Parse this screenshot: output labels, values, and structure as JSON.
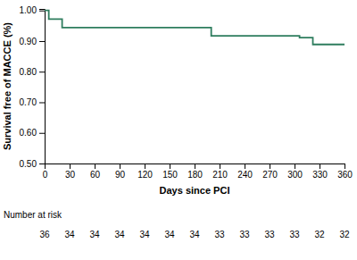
{
  "chart_data": {
    "type": "line",
    "x": [
      0,
      5,
      5,
      21,
      21,
      200,
      200,
      210,
      210,
      306,
      306,
      322,
      322,
      360
    ],
    "values": [
      1.0,
      1.0,
      0.972,
      0.972,
      0.944,
      0.944,
      0.917,
      0.917,
      0.917,
      0.917,
      0.911,
      0.911,
      0.889,
      0.889
    ],
    "color": "#2e7d5e",
    "x_label": "Days since PCI",
    "y_label": "Survival free of MACCE (%)",
    "xlim": [
      0,
      360
    ],
    "ylim": [
      0.5,
      1.005
    ],
    "xticks": [
      0,
      30,
      60,
      90,
      120,
      150,
      180,
      210,
      240,
      270,
      300,
      330,
      360
    ],
    "yticks": [
      {
        "value": 0.5,
        "label": "0.50"
      },
      {
        "value": 0.6,
        "label": "0.60"
      },
      {
        "value": 0.7,
        "label": "0.70"
      },
      {
        "value": 0.8,
        "label": "0.80"
      },
      {
        "value": 0.9,
        "label": "0.90"
      },
      {
        "value": 1.0,
        "label": "1.00"
      }
    ],
    "grid": false,
    "risk_label": "Number at risk",
    "risk_x": [
      0,
      30,
      60,
      90,
      120,
      150,
      180,
      210,
      240,
      270,
      300,
      330,
      360
    ],
    "risk_numbers": [
      36,
      34,
      34,
      34,
      34,
      34,
      34,
      33,
      33,
      33,
      33,
      32,
      32
    ]
  }
}
